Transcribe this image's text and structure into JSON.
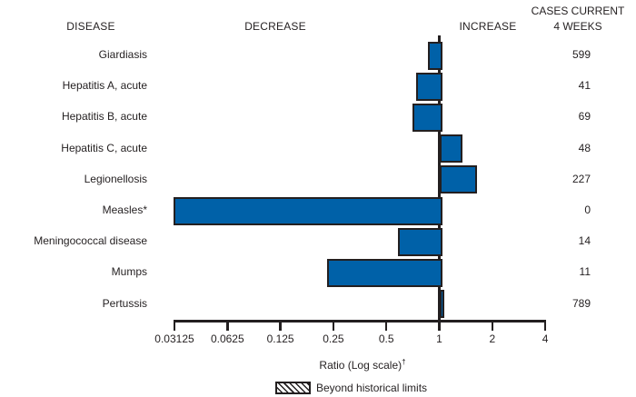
{
  "header": {
    "disease": "DISEASE",
    "decrease": "DECREASE",
    "increase": "INCREASE",
    "cases_line1": "CASES CURRENT",
    "cases_line2": "4 WEEKS"
  },
  "chart_data": {
    "type": "bar",
    "orientation": "horizontal",
    "scale": "log2",
    "xlabel": "Ratio (Log scale)",
    "xlabel_superscript": "†",
    "xlim": [
      0.03125,
      4
    ],
    "baseline_ratio": 1,
    "grid": false,
    "ticks": [
      {
        "label": "0.03125",
        "value": 0.03125
      },
      {
        "label": "0.0625",
        "value": 0.0625
      },
      {
        "label": "0.125",
        "value": 0.125
      },
      {
        "label": "0.25",
        "value": 0.25
      },
      {
        "label": "0.5",
        "value": 0.5
      },
      {
        "label": "1",
        "value": 1
      },
      {
        "label": "2",
        "value": 2
      },
      {
        "label": "4",
        "value": 4
      }
    ],
    "rows": [
      {
        "disease": "Giardiasis",
        "ratio": 0.86,
        "cases": "599"
      },
      {
        "disease": "Hepatitis A, acute",
        "ratio": 0.74,
        "cases": "41"
      },
      {
        "disease": "Hepatitis B, acute",
        "ratio": 0.7,
        "cases": "69"
      },
      {
        "disease": "Hepatitis C, acute",
        "ratio": 1.29,
        "cases": "48"
      },
      {
        "disease": "Legionellosis",
        "ratio": 1.57,
        "cases": "227"
      },
      {
        "disease": "Measles*",
        "ratio": 0.031,
        "cases": "0"
      },
      {
        "disease": "Meningococcal disease",
        "ratio": 0.58,
        "cases": "14"
      },
      {
        "disease": "Mumps",
        "ratio": 0.23,
        "cases": "11"
      },
      {
        "disease": "Pertussis",
        "ratio": 1.01,
        "cases": "789"
      }
    ],
    "legend": [
      {
        "label": "Beyond historical limits",
        "swatch": "hatched"
      }
    ],
    "colors": {
      "bar_fill": "#0061a8",
      "bar_border": "#231f20",
      "axis": "#231f20",
      "text": "#231f20",
      "background": "#ffffff"
    }
  }
}
